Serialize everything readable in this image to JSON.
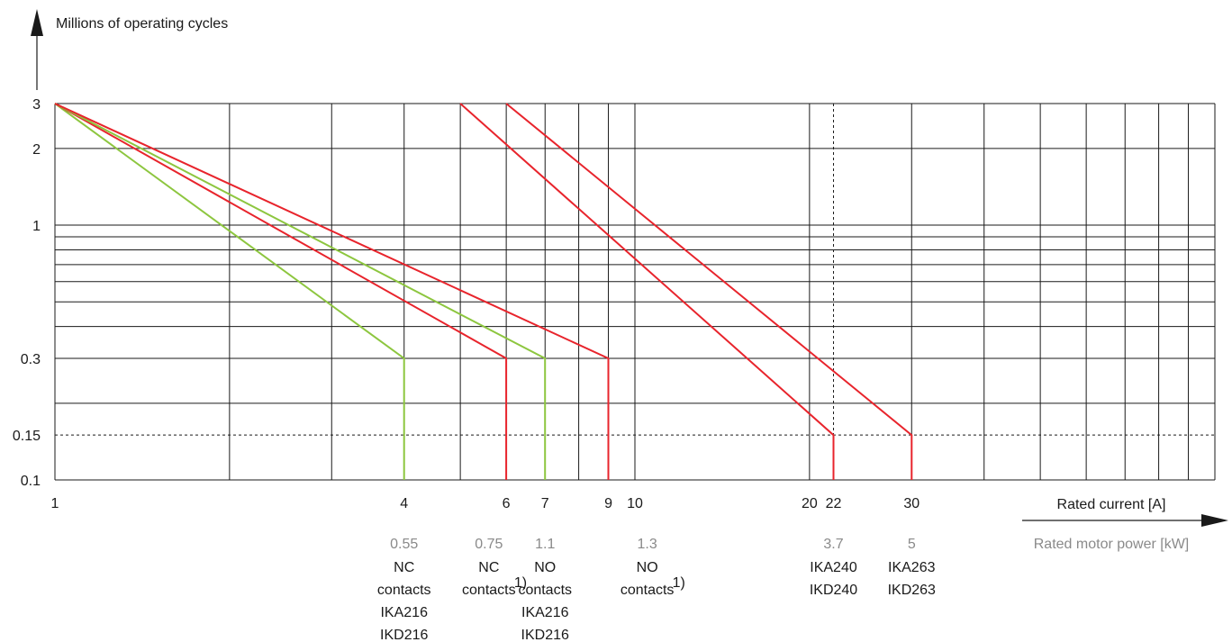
{
  "chart_data": {
    "type": "line",
    "title": "",
    "ylabel": "Millions of operating cycles",
    "xlabel": "Rated current [A]",
    "x2label": "Rated motor power [kW]",
    "xscale": "log",
    "yscale": "log",
    "xlim": [
      1,
      40
    ],
    "ylim": [
      0.1,
      3
    ],
    "x_ticks": [
      "1",
      "4",
      "6",
      "7",
      "9",
      "10",
      "20",
      "22",
      "30"
    ],
    "y_ticks": [
      "3",
      "2",
      "1",
      "0.3",
      "0.15",
      "0.1"
    ],
    "x_gridlines": [
      1,
      2,
      3,
      4,
      5,
      6,
      7,
      8,
      9,
      10,
      20,
      30,
      40,
      50,
      60,
      70,
      80,
      90,
      100
    ],
    "y_gridlines": [
      0.1,
      0.2,
      0.3,
      0.4,
      0.5,
      0.6,
      0.7,
      0.8,
      0.9,
      1,
      2,
      3
    ],
    "dashed_reference_lines": {
      "x": 22,
      "y": 0.15
    },
    "grid": true,
    "legend": "none",
    "series": [
      {
        "color": "#8dc63f",
        "points": [
          [
            1,
            3
          ],
          [
            4,
            0.3
          ],
          [
            4,
            0.1
          ]
        ]
      },
      {
        "color": "#e8242c",
        "points": [
          [
            1,
            3
          ],
          [
            6,
            0.3
          ],
          [
            6,
            0.1
          ]
        ]
      },
      {
        "color": "#8dc63f",
        "points": [
          [
            1,
            3
          ],
          [
            7,
            0.3
          ],
          [
            7,
            0.1
          ]
        ]
      },
      {
        "color": "#e8242c",
        "points": [
          [
            1,
            3
          ],
          [
            9,
            0.3
          ],
          [
            9,
            0.1
          ]
        ]
      },
      {
        "color": "#e8242c",
        "points": [
          [
            5,
            3
          ],
          [
            22,
            0.15
          ],
          [
            22,
            0.1
          ]
        ]
      },
      {
        "color": "#e8242c",
        "points": [
          [
            6,
            3
          ],
          [
            30,
            0.15
          ],
          [
            30,
            0.1
          ]
        ]
      }
    ],
    "annotations": [
      {
        "x": 4,
        "power": "0.55",
        "lines": [
          "NC",
          "contacts",
          "IKA216",
          "IKD216"
        ],
        "footnote": ""
      },
      {
        "x": 5.6,
        "power": "0.75",
        "lines": [
          "NC",
          "contacts"
        ],
        "footnote": "1)"
      },
      {
        "x": 7,
        "power": "1.1",
        "lines": [
          "NO",
          "contacts",
          "IKA216",
          "IKD216"
        ],
        "footnote": ""
      },
      {
        "x": 10.5,
        "power": "1.3",
        "lines": [
          "NO",
          "contacts"
        ],
        "footnote": "1)"
      },
      {
        "x": 22,
        "power": "3.7",
        "lines": [
          "IKA240",
          "IKD240"
        ],
        "footnote": ""
      },
      {
        "x": 30,
        "power": "5",
        "lines": [
          "IKA263",
          "IKD263"
        ],
        "footnote": ""
      }
    ]
  }
}
